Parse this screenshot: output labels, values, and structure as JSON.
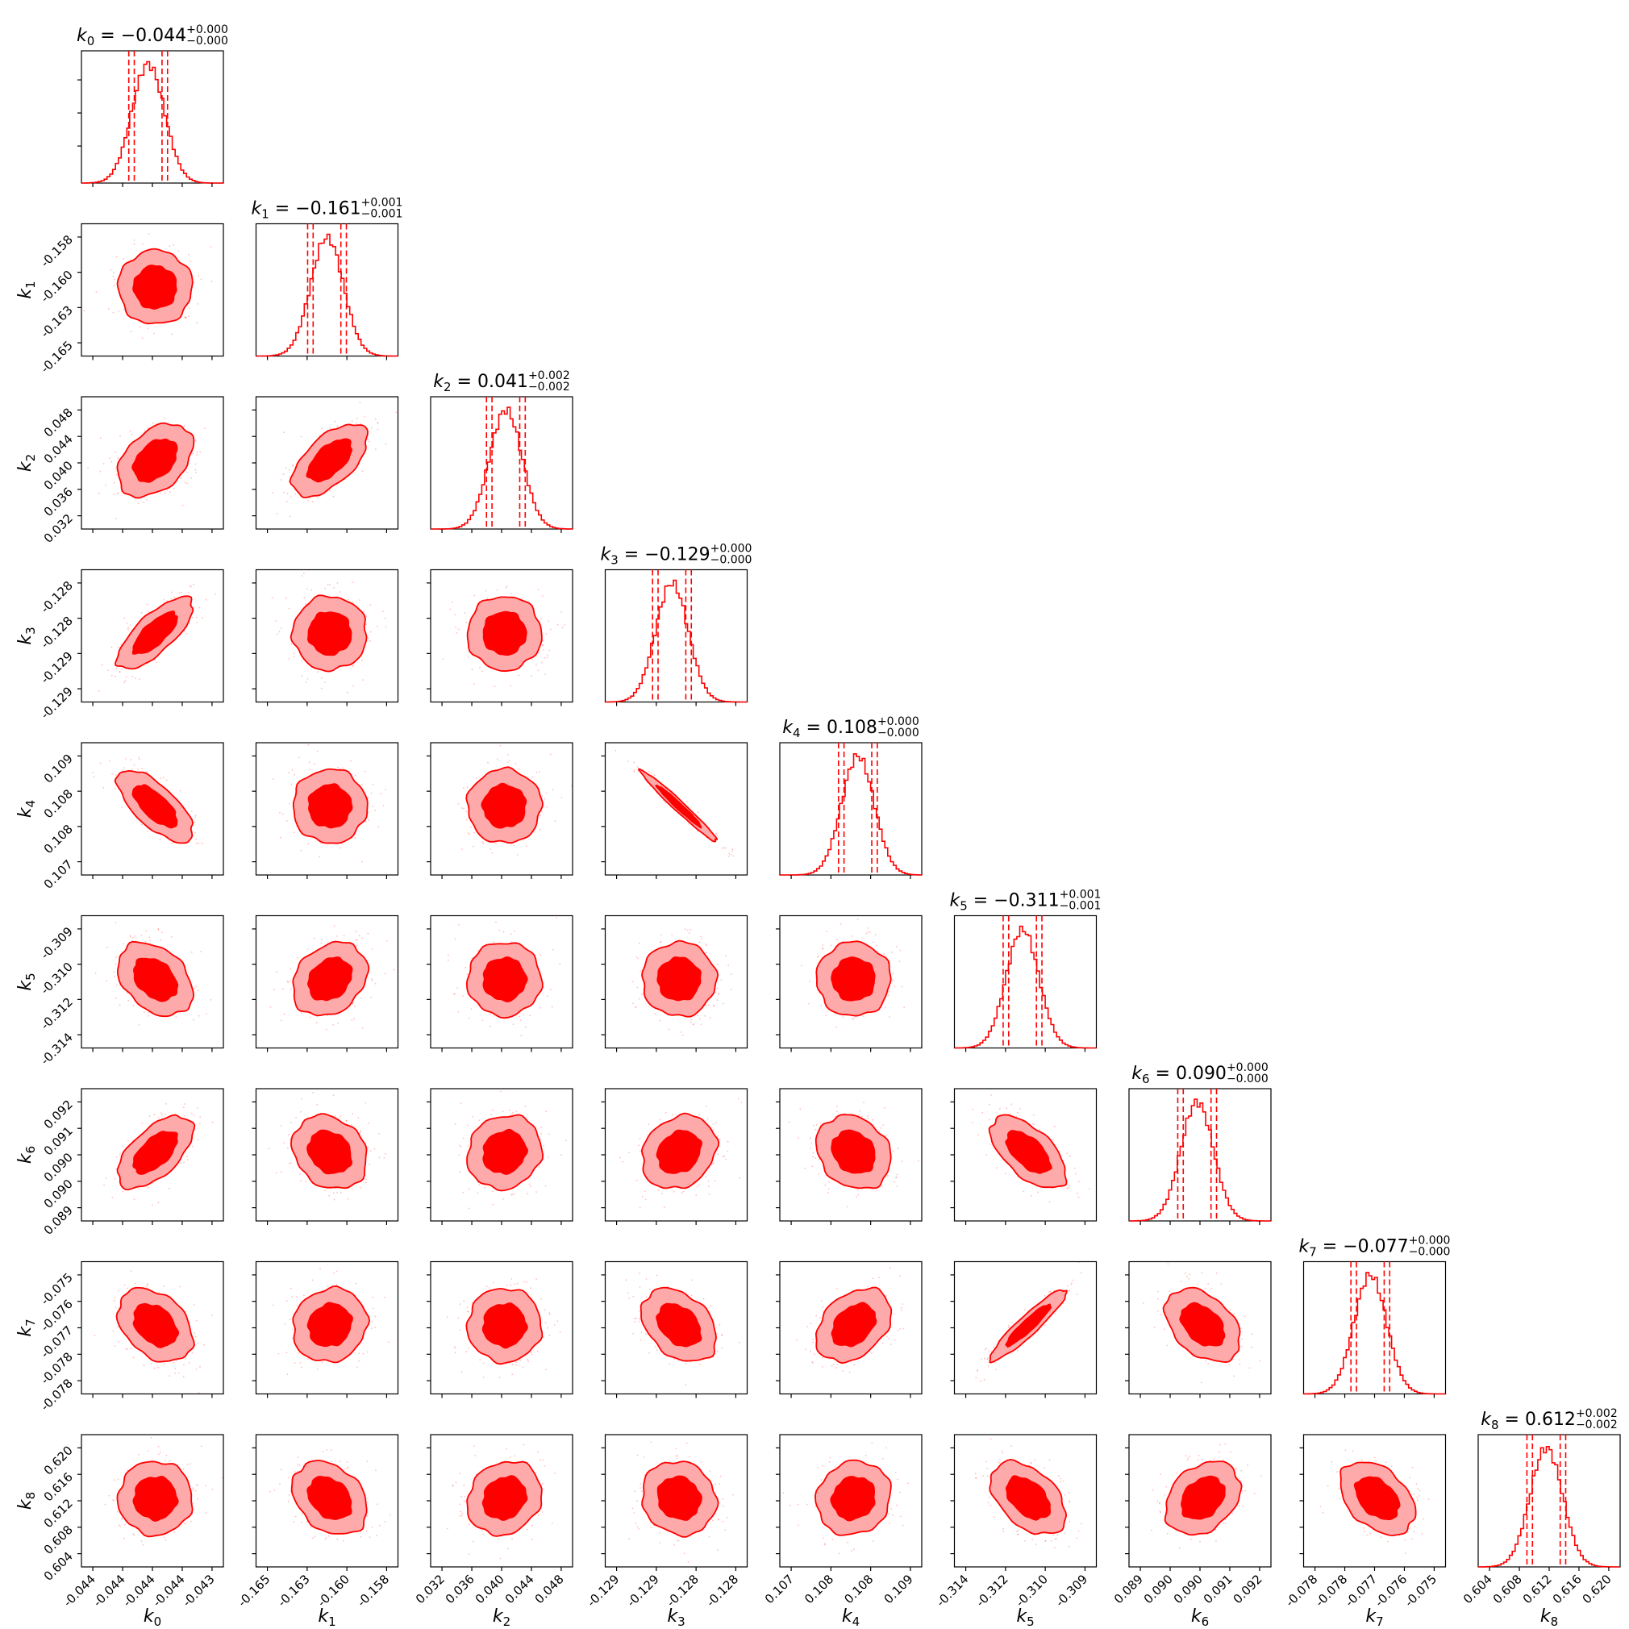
{
  "chart_data": {
    "type": "corner",
    "color": "#ff0000",
    "params": [
      {
        "label": "k",
        "sub": "0",
        "title_value": "= −0.044",
        "err_plus": "+0.000",
        "err_minus": "−0.000",
        "ticks": [
          "-0.044",
          "-0.044",
          "-0.044",
          "-0.044",
          "-0.043"
        ],
        "q": [
          0.025,
          0.16,
          0.84,
          0.975
        ],
        "center": 0.47
      },
      {
        "label": "k",
        "sub": "1",
        "title_value": "= −0.161",
        "err_plus": "+0.001",
        "err_minus": "−0.001",
        "ticks": [
          "-0.165",
          "-0.163",
          "-0.160",
          "-0.158"
        ],
        "q": [
          0.025,
          0.16,
          0.84,
          0.975
        ],
        "center": 0.5
      },
      {
        "label": "k",
        "sub": "2",
        "title_value": "= 0.041",
        "err_plus": "+0.002",
        "err_minus": "−0.002",
        "ticks": [
          "0.032",
          "0.036",
          "0.040",
          "0.044",
          "0.048"
        ],
        "q": [
          0.025,
          0.16,
          0.84,
          0.975
        ],
        "center": 0.53
      },
      {
        "label": "k",
        "sub": "3",
        "title_value": "= −0.129",
        "err_plus": "+0.000",
        "err_minus": "−0.000",
        "ticks": [
          "-0.129",
          "-0.129",
          "-0.128",
          "-0.128"
        ],
        "q": [
          0.025,
          0.16,
          0.84,
          0.975
        ],
        "center": 0.47
      },
      {
        "label": "k",
        "sub": "4",
        "title_value": "= 0.108",
        "err_plus": "+0.000",
        "err_minus": "−0.000",
        "ticks": [
          "0.107",
          "0.108",
          "0.108",
          "0.109"
        ],
        "q": [
          0.025,
          0.16,
          0.84,
          0.975
        ],
        "center": 0.55
      },
      {
        "label": "k",
        "sub": "5",
        "title_value": "= −0.311",
        "err_plus": "+0.001",
        "err_minus": "−0.001",
        "ticks": [
          "-0.314",
          "-0.312",
          "-0.310",
          "-0.309"
        ],
        "q": [
          0.025,
          0.16,
          0.84,
          0.975
        ],
        "center": 0.48
      },
      {
        "label": "k",
        "sub": "6",
        "title_value": "= 0.090",
        "err_plus": "+0.000",
        "err_minus": "−0.000",
        "ticks": [
          "0.089",
          "0.090",
          "0.090",
          "0.091",
          "0.092"
        ],
        "q": [
          0.025,
          0.16,
          0.84,
          0.975
        ],
        "center": 0.48
      },
      {
        "label": "k",
        "sub": "7",
        "title_value": "= −0.077",
        "err_plus": "+0.000",
        "err_minus": "−0.000",
        "ticks": [
          "-0.078",
          "-0.078",
          "-0.077",
          "-0.076",
          "-0.075"
        ],
        "q": [
          0.025,
          0.16,
          0.84,
          0.975
        ],
        "center": 0.47
      },
      {
        "label": "k",
        "sub": "8",
        "title_value": "= 0.612",
        "err_plus": "+0.002",
        "err_minus": "−0.002",
        "ticks": [
          "0.604",
          "0.608",
          "0.612",
          "0.616",
          "0.620"
        ],
        "q": [
          0.025,
          0.16,
          0.84,
          0.975
        ],
        "center": 0.48
      }
    ],
    "y_ticks": [
      null,
      [
        "-0.158",
        "-0.160",
        "-0.163",
        "-0.165"
      ],
      [
        "0.048",
        "0.044",
        "0.040",
        "0.036",
        "0.032"
      ],
      [
        "-0.128",
        "-0.128",
        "-0.129",
        "-0.129"
      ],
      [
        "0.109",
        "0.108",
        "0.108",
        "0.107"
      ],
      [
        "-0.309",
        "-0.310",
        "-0.312",
        "-0.314"
      ],
      [
        "0.092",
        "0.091",
        "0.090",
        "0.090",
        "0.089"
      ],
      [
        "-0.075",
        "-0.076",
        "-0.077",
        "-0.078",
        "-0.078"
      ],
      [
        "0.620",
        "0.616",
        "0.612",
        "0.608",
        "0.604"
      ]
    ],
    "correlations": [
      {
        "row": 1,
        "col": 0,
        "rho": 0.0
      },
      {
        "row": 2,
        "col": 0,
        "rho": 0.4
      },
      {
        "row": 2,
        "col": 1,
        "rho": 0.6
      },
      {
        "row": 3,
        "col": 0,
        "rho": 0.75
      },
      {
        "row": 3,
        "col": 1,
        "rho": 0.0
      },
      {
        "row": 3,
        "col": 2,
        "rho": 0.0
      },
      {
        "row": 4,
        "col": 0,
        "rho": -0.7
      },
      {
        "row": 4,
        "col": 1,
        "rho": 0.0
      },
      {
        "row": 4,
        "col": 2,
        "rho": 0.0
      },
      {
        "row": 4,
        "col": 3,
        "rho": -0.98
      },
      {
        "row": 5,
        "col": 0,
        "rho": -0.35
      },
      {
        "row": 5,
        "col": 1,
        "rho": 0.25
      },
      {
        "row": 5,
        "col": 2,
        "rho": 0.0
      },
      {
        "row": 5,
        "col": 3,
        "rho": 0.0
      },
      {
        "row": 5,
        "col": 4,
        "rho": 0.0
      },
      {
        "row": 6,
        "col": 0,
        "rho": 0.6
      },
      {
        "row": 6,
        "col": 1,
        "rho": -0.2
      },
      {
        "row": 6,
        "col": 2,
        "rho": 0.1
      },
      {
        "row": 6,
        "col": 3,
        "rho": 0.2
      },
      {
        "row": 6,
        "col": 4,
        "rho": -0.2
      },
      {
        "row": 6,
        "col": 5,
        "rho": -0.6
      },
      {
        "row": 7,
        "col": 0,
        "rho": -0.35
      },
      {
        "row": 7,
        "col": 1,
        "rho": 0.1
      },
      {
        "row": 7,
        "col": 2,
        "rho": 0.0
      },
      {
        "row": 7,
        "col": 3,
        "rho": -0.35
      },
      {
        "row": 7,
        "col": 4,
        "rho": 0.35
      },
      {
        "row": 7,
        "col": 5,
        "rho": 0.93
      },
      {
        "row": 7,
        "col": 6,
        "rho": -0.4
      },
      {
        "row": 8,
        "col": 0,
        "rho": 0.0
      },
      {
        "row": 8,
        "col": 1,
        "rho": -0.3
      },
      {
        "row": 8,
        "col": 2,
        "rho": 0.15
      },
      {
        "row": 8,
        "col": 3,
        "rho": -0.1
      },
      {
        "row": 8,
        "col": 4,
        "rho": 0.1
      },
      {
        "row": 8,
        "col": 5,
        "rho": -0.45
      },
      {
        "row": 8,
        "col": 6,
        "rho": 0.3
      },
      {
        "row": 8,
        "col": 7,
        "rho": -0.4
      }
    ]
  }
}
